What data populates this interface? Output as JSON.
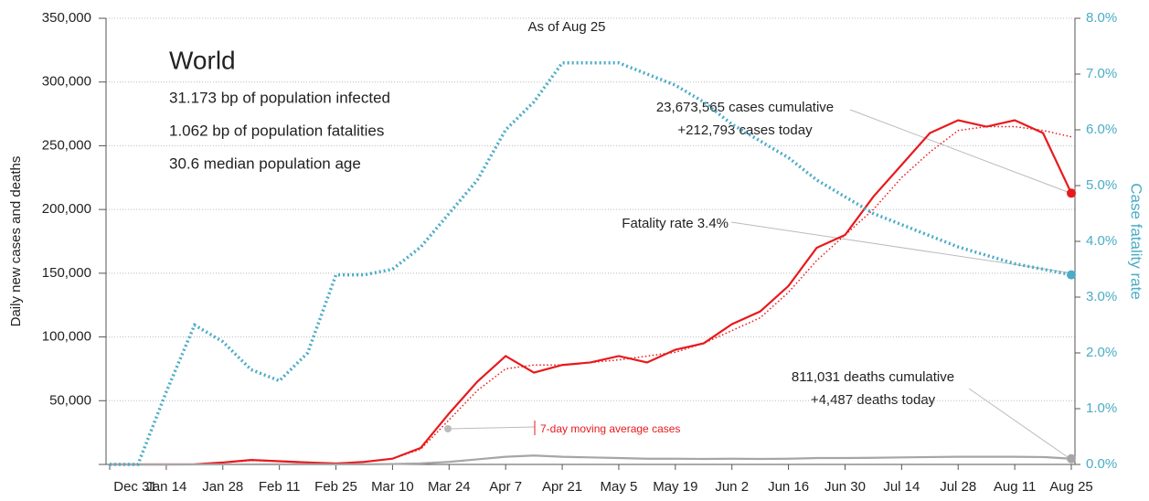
{
  "chart_data": {
    "type": "line",
    "title": "World",
    "subtitle": "As of Aug 25",
    "annotations": [
      "31.173 bp of population infected",
      "1.062 bp of population fatalities",
      "30.6 median population age"
    ],
    "callouts": {
      "cases": [
        "23,673,565 cases cumulative",
        "+212,793 cases today"
      ],
      "fatality": "Fatality rate 3.4%",
      "deaths": [
        "811,031 deaths cumulative",
        "+4,487 deaths today"
      ],
      "average": "7-day moving average cases"
    },
    "ylabel": "Daily new cases and deaths",
    "y2label": "Case fatality rate",
    "categories": [
      "Dec 31",
      null,
      "Jan 14",
      null,
      "Jan 28",
      null,
      "Feb 11",
      null,
      "Feb 25",
      null,
      "Mar 10",
      null,
      "Mar 24",
      null,
      "Apr 7",
      null,
      "Apr 21",
      null,
      "May 5",
      null,
      "May 19",
      null,
      "Jun 2",
      null,
      "Jun 16",
      null,
      "Jun 30",
      null,
      "Jul 14",
      null,
      "Jul 28",
      null,
      "Aug 11",
      null,
      "Aug 25"
    ],
    "series": [
      {
        "name": "Daily new cases",
        "color": "#e8191c",
        "style": "solid",
        "values": [
          0,
          0,
          0,
          100,
          1500,
          3500,
          2500,
          1500,
          700,
          2000,
          4500,
          13000,
          40000,
          65000,
          85000,
          72000,
          78000,
          80000,
          85000,
          80000,
          90000,
          95000,
          110000,
          120000,
          140000,
          170000,
          180000,
          210000,
          235000,
          260000,
          270000,
          265000,
          270000,
          260000,
          212793
        ]
      },
      {
        "name": "7-day moving average cases",
        "color": "#e8191c",
        "style": "dotted",
        "values": [
          0,
          0,
          0,
          100,
          1400,
          3000,
          2700,
          1700,
          800,
          1800,
          4500,
          12000,
          35000,
          58000,
          75000,
          78000,
          78000,
          80000,
          82000,
          85000,
          88000,
          95000,
          105000,
          115000,
          135000,
          160000,
          180000,
          200000,
          225000,
          245000,
          262000,
          265000,
          265000,
          262000,
          257000
        ]
      },
      {
        "name": "Daily new deaths",
        "color": "#a6a6a6",
        "style": "solid",
        "values": [
          0,
          0,
          0,
          5,
          40,
          60,
          100,
          100,
          60,
          80,
          300,
          800,
          2000,
          4000,
          6000,
          7000,
          6000,
          5500,
          5000,
          4500,
          4500,
          4300,
          4500,
          4300,
          4500,
          5000,
          5000,
          5200,
          5500,
          5800,
          6000,
          6000,
          6000,
          5800,
          4487
        ]
      },
      {
        "name": "Case fatality rate",
        "color": "#4bacc6",
        "style": "dotted",
        "axis": "y2",
        "values": [
          0,
          0,
          1.3,
          2.5,
          2.2,
          1.7,
          1.5,
          2.0,
          3.4,
          3.4,
          3.5,
          3.9,
          4.5,
          5.1,
          6.0,
          6.5,
          7.2,
          7.2,
          7.2,
          7.0,
          6.8,
          6.5,
          6.1,
          5.8,
          5.5,
          5.1,
          4.8,
          4.5,
          4.3,
          4.1,
          3.9,
          3.75,
          3.6,
          3.5,
          3.4
        ]
      }
    ],
    "ylim": [
      0,
      350000
    ],
    "yticks": [
      {
        "value": 0,
        "label": ""
      },
      {
        "value": 50000,
        "label": "50,000"
      },
      {
        "value": 100000,
        "label": "100,000"
      },
      {
        "value": 150000,
        "label": "150,000"
      },
      {
        "value": 200000,
        "label": "200,000"
      },
      {
        "value": 250000,
        "label": "250,000"
      },
      {
        "value": 300000,
        "label": "300,000"
      },
      {
        "value": 350000,
        "label": "350,000"
      }
    ],
    "y2lim": [
      0,
      8
    ],
    "y2ticks": [
      {
        "value": 0,
        "label": "0.0%"
      },
      {
        "value": 1,
        "label": "1.0%"
      },
      {
        "value": 2,
        "label": "2.0%"
      },
      {
        "value": 3,
        "label": "3.0%"
      },
      {
        "value": 4,
        "label": "4.0%"
      },
      {
        "value": 5,
        "label": "5.0%"
      },
      {
        "value": 6,
        "label": "6.0%"
      },
      {
        "value": 7,
        "label": "7.0%"
      },
      {
        "value": 8,
        "label": "8.0%"
      }
    ],
    "grid": true
  }
}
